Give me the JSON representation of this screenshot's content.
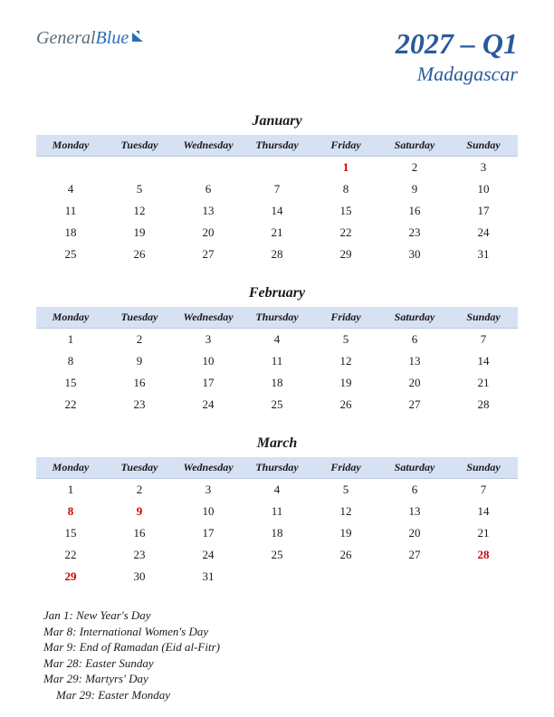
{
  "logo": {
    "part1": "General",
    "part2": "Blue"
  },
  "header": {
    "period": "2027 – Q1",
    "country": "Madagascar"
  },
  "days": [
    "Monday",
    "Tuesday",
    "Wednesday",
    "Thursday",
    "Friday",
    "Saturday",
    "Sunday"
  ],
  "colors": {
    "header_bg": "#d6e2f3",
    "title_color": "#2a5a9a",
    "holiday_color": "#cc0000",
    "text_color": "#1a1a1a"
  },
  "months": [
    {
      "name": "January",
      "weeks": [
        [
          "",
          "",
          "",
          "",
          "1",
          "2",
          "3"
        ],
        [
          "4",
          "5",
          "6",
          "7",
          "8",
          "9",
          "10"
        ],
        [
          "11",
          "12",
          "13",
          "14",
          "15",
          "16",
          "17"
        ],
        [
          "18",
          "19",
          "20",
          "21",
          "22",
          "23",
          "24"
        ],
        [
          "25",
          "26",
          "27",
          "28",
          "29",
          "30",
          "31"
        ]
      ],
      "holidays": [
        "1"
      ]
    },
    {
      "name": "February",
      "weeks": [
        [
          "1",
          "2",
          "3",
          "4",
          "5",
          "6",
          "7"
        ],
        [
          "8",
          "9",
          "10",
          "11",
          "12",
          "13",
          "14"
        ],
        [
          "15",
          "16",
          "17",
          "18",
          "19",
          "20",
          "21"
        ],
        [
          "22",
          "23",
          "24",
          "25",
          "26",
          "27",
          "28"
        ]
      ],
      "holidays": []
    },
    {
      "name": "March",
      "weeks": [
        [
          "1",
          "2",
          "3",
          "4",
          "5",
          "6",
          "7"
        ],
        [
          "8",
          "9",
          "10",
          "11",
          "12",
          "13",
          "14"
        ],
        [
          "15",
          "16",
          "17",
          "18",
          "19",
          "20",
          "21"
        ],
        [
          "22",
          "23",
          "24",
          "25",
          "26",
          "27",
          "28"
        ],
        [
          "29",
          "30",
          "31",
          "",
          "",
          "",
          ""
        ]
      ],
      "holidays": [
        "8",
        "9",
        "28",
        "29"
      ]
    }
  ],
  "holiday_list": [
    {
      "text": "Jan 1: New Year's Day",
      "indent": false
    },
    {
      "text": "Mar 8: International Women's Day",
      "indent": false
    },
    {
      "text": "Mar 9: End of Ramadan (Eid al-Fitr)",
      "indent": false
    },
    {
      "text": "Mar 28: Easter Sunday",
      "indent": false
    },
    {
      "text": "Mar 29: Martyrs' Day",
      "indent": false
    },
    {
      "text": "Mar 29: Easter Monday",
      "indent": true
    }
  ]
}
